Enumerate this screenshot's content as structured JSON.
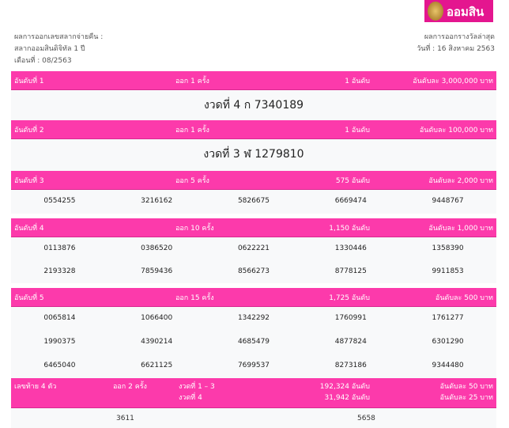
{
  "logo": {
    "text": "ออมสิน"
  },
  "info_left": [
    "ผลการออกเลขสลากจ่ายคืน :",
    "สลากออมสินดิจิทัล 1 ปี",
    "เดือนที่ : 08/2563"
  ],
  "info_right": [
    "ผลการออกรางวัลล่าสุด",
    "วันที่ : 16 สิงหาคม 2563"
  ],
  "prizes": [
    {
      "rank": "อันดับที่ 1",
      "draws": "ออก 1 ครั้ง",
      "count": "1 อันดับ",
      "amount": "อันดับละ 3,000,000 บาท",
      "winner": "งวดที่ 4 ก 7340189"
    },
    {
      "rank": "อันดับที่ 2",
      "draws": "ออก 1 ครั้ง",
      "count": "1 อันดับ",
      "amount": "อันดับละ 100,000 บาท",
      "winner": "งวดที่ 3 ฬ 1279810"
    },
    {
      "rank": "อันดับที่ 3",
      "draws": "ออก 5 ครั้ง",
      "count": "575 อันดับ",
      "amount": "อันดับละ 2,000 บาท",
      "numbers": [
        "0554255",
        "3216162",
        "5826675",
        "6669474",
        "9448767"
      ]
    },
    {
      "rank": "อันดับที่ 4",
      "draws": "ออก 10 ครั้ง",
      "count": "1,150 อันดับ",
      "amount": "อันดับละ 1,000 บาท",
      "numbers": [
        "0113876",
        "0386520",
        "0622221",
        "1330446",
        "1358390",
        "2193328",
        "7859436",
        "8566273",
        "8778125",
        "9911853"
      ]
    },
    {
      "rank": "อันดับที่ 5",
      "draws": "ออก 15 ครั้ง",
      "count": "1,725 อันดับ",
      "amount": "อันดับละ 500 บาท",
      "numbers": [
        "0065814",
        "1066400",
        "1342292",
        "1760991",
        "1761277",
        "1990375",
        "4390214",
        "4685479",
        "4877824",
        "6301290",
        "6465040",
        "6621125",
        "7699537",
        "8273186",
        "9344480"
      ]
    }
  ],
  "last4": {
    "rank": "เลขท้าย 4 ตัว",
    "draws": "ออก 2 ครั้ง",
    "periods": [
      "งวดที่ 1 – 3",
      "งวดที่ 4"
    ],
    "counts": [
      "192,324 อันดับ",
      "31,942 อันดับ"
    ],
    "amounts": [
      "อันดับละ 50 บาท",
      "อันดับละ 25 บาท"
    ],
    "numbers": [
      "3611",
      "5658"
    ]
  }
}
